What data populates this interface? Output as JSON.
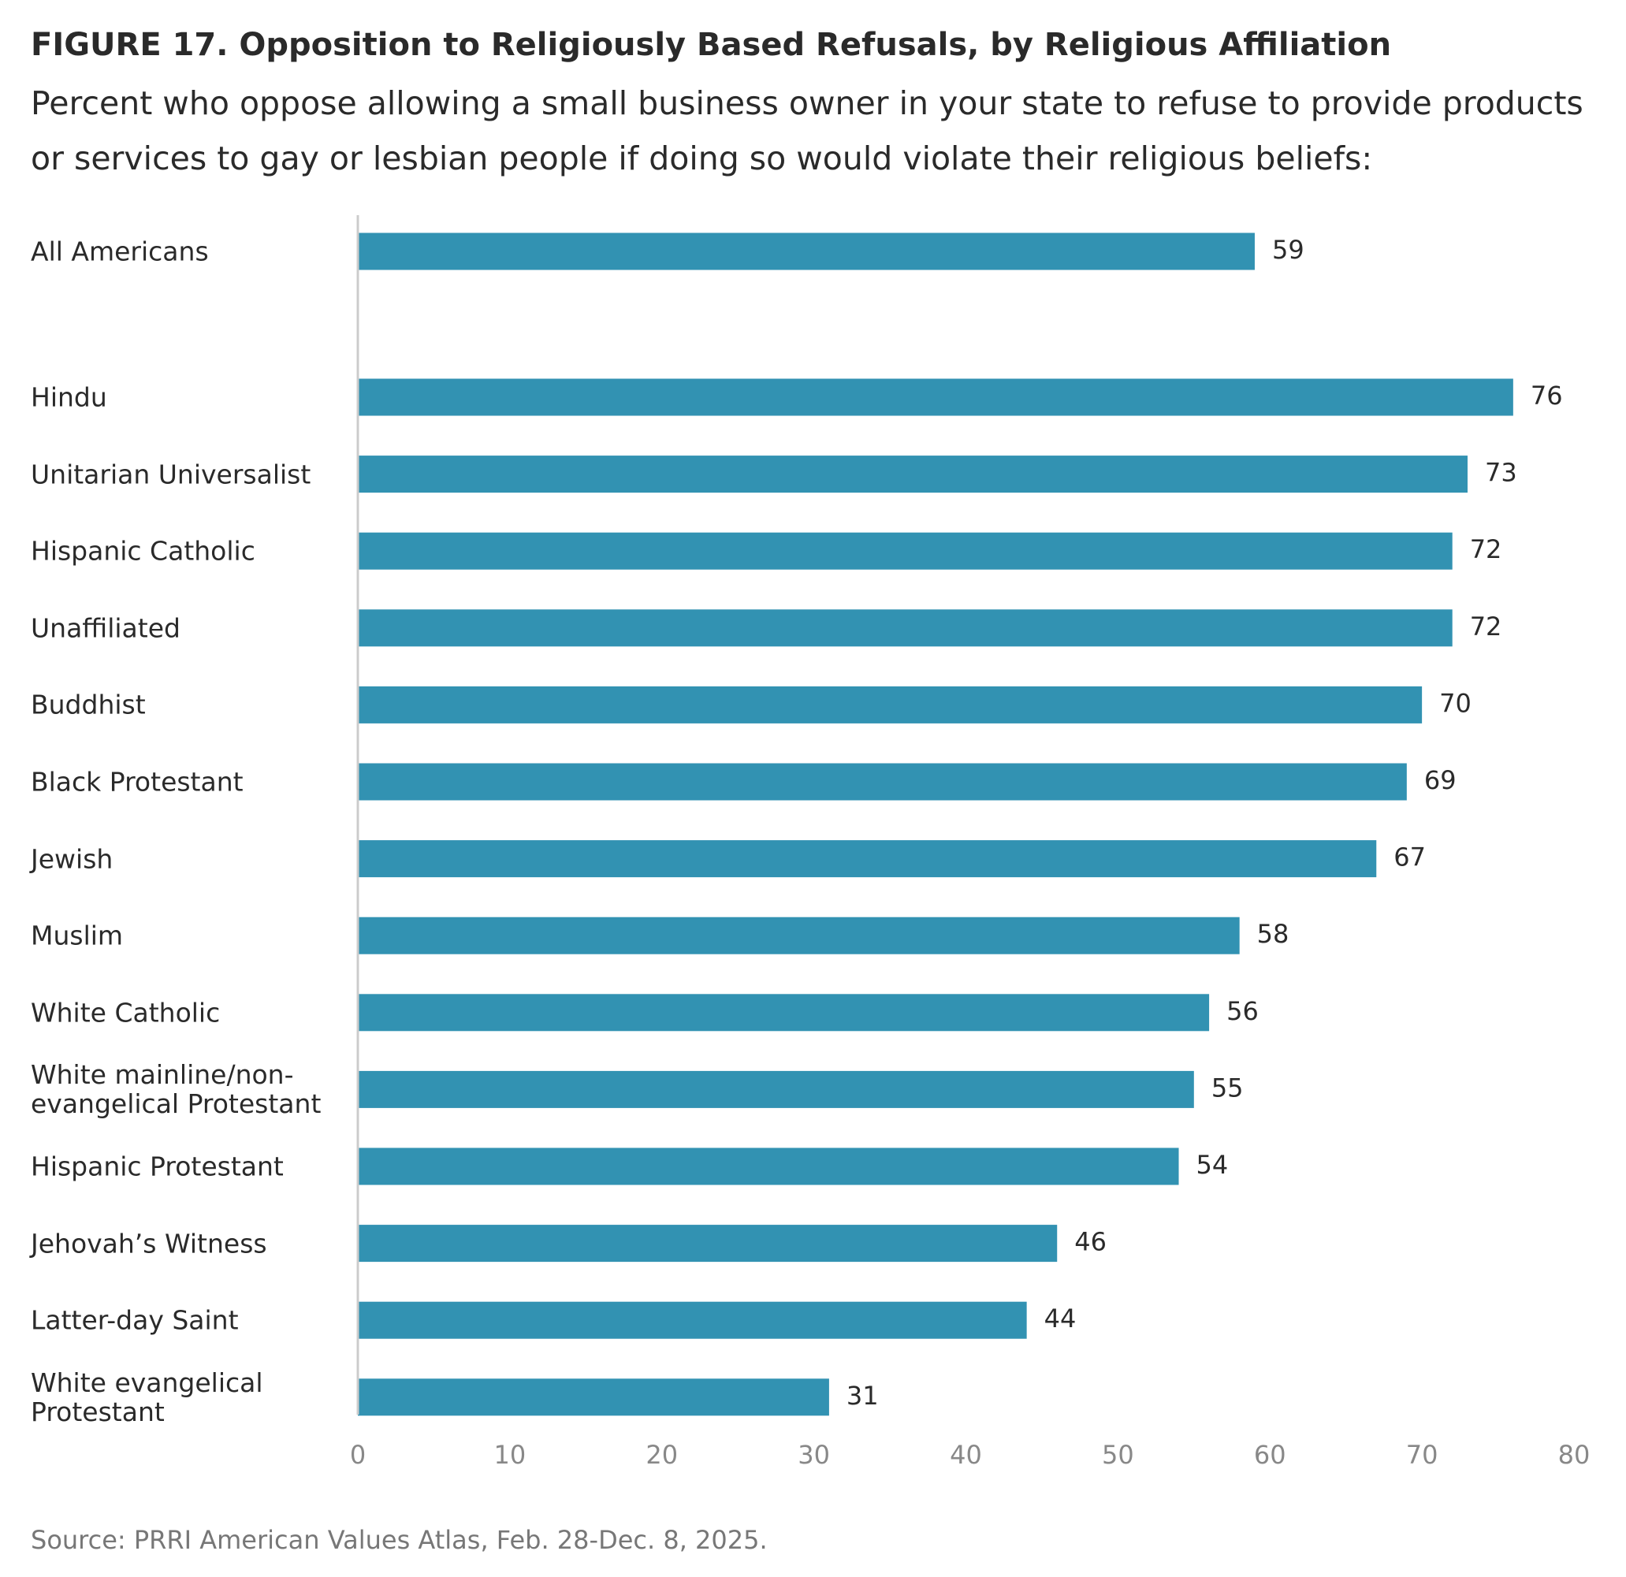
{
  "chart_data": {
    "type": "bar",
    "orientation": "horizontal",
    "title": "FIGURE 17.  Opposition to Religiously Based Refusals, by Religious Affiliation",
    "subtitle": "Percent who oppose allowing a small business owner in your state to refuse to provide products or services to gay or lesbian people if doing so would violate their religious beliefs:",
    "source": "Source: PRRI American Values Atlas, Feb. 28-Dec. 8, 2025.",
    "categories": [
      "All Americans",
      "Hindu",
      "Unitarian Universalist",
      "Hispanic Catholic",
      "Unaffiliated",
      "Buddhist",
      "Black Protestant",
      "Jewish",
      "Muslim",
      "White Catholic",
      "White mainline/non-evangelical Protestant",
      "Hispanic Protestant",
      "Jehovah’s Witness",
      "Latter-day Saint",
      "White evangelical Protestant"
    ],
    "values": [
      59,
      76,
      73,
      72,
      72,
      70,
      69,
      67,
      58,
      56,
      55,
      54,
      46,
      44,
      31
    ],
    "color": "#3292b2",
    "xlim": [
      0,
      80
    ],
    "xticks": [
      0,
      10,
      20,
      30,
      40,
      50,
      60,
      70,
      80
    ],
    "grid": false
  }
}
